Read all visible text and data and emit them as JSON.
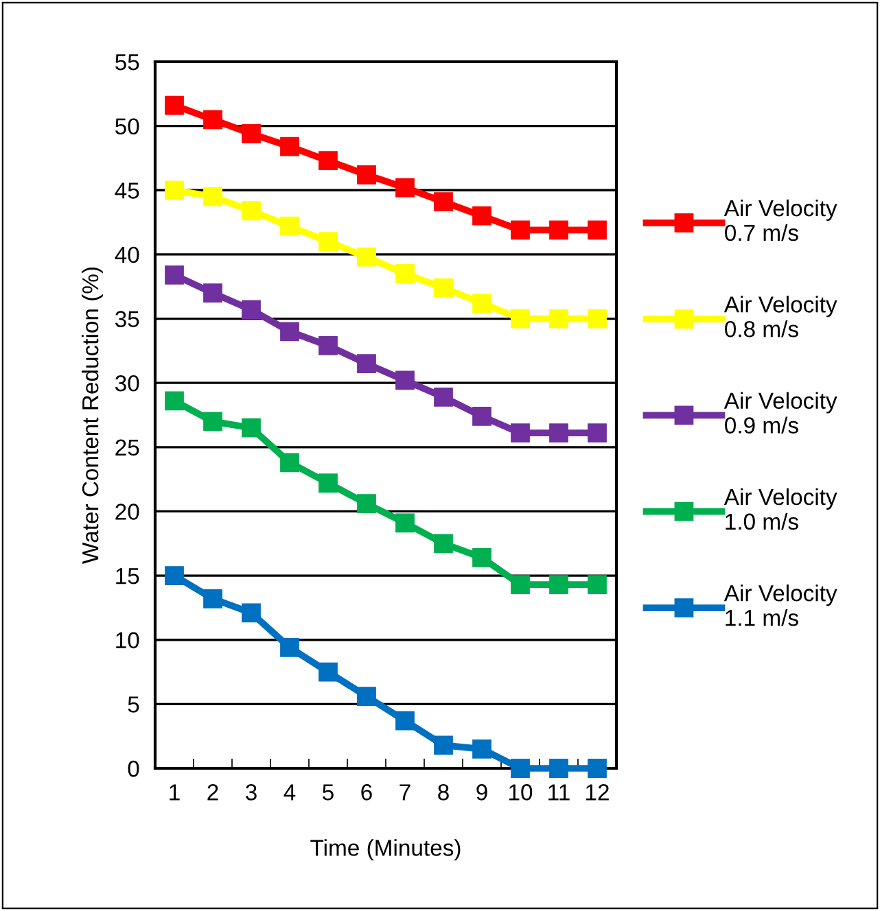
{
  "chart_data": {
    "type": "line",
    "xlabel": "Time (Minutes)",
    "ylabel": "Water Content Reduction (%)",
    "categories": [
      "1",
      "2",
      "3",
      "4",
      "5",
      "6",
      "7",
      "8",
      "9",
      "10",
      "11",
      "12"
    ],
    "series": [
      {
        "name": "Air Velocity\n0.7 m/s",
        "color": "#ff0000",
        "values": [
          51.6,
          50.5,
          49.4,
          48.4,
          47.3,
          46.2,
          45.2,
          44.1,
          43.0,
          41.9,
          41.9,
          41.9
        ]
      },
      {
        "name": "Air Velocity\n0.8 m/s",
        "color": "#ffff00",
        "values": [
          45.0,
          44.5,
          43.4,
          42.2,
          41.0,
          39.8,
          38.5,
          37.4,
          36.2,
          35.0,
          35.0,
          35.0
        ]
      },
      {
        "name": "Air Velocity\n0.9 m/s",
        "color": "#7030a0",
        "values": [
          38.4,
          37.0,
          35.7,
          34.0,
          32.9,
          31.5,
          30.2,
          28.9,
          27.4,
          26.1,
          26.1,
          26.1
        ]
      },
      {
        "name": "Air Velocity\n1.0 m/s",
        "color": "#00b050",
        "values": [
          28.6,
          27.0,
          26.5,
          23.8,
          22.2,
          20.6,
          19.1,
          17.5,
          16.4,
          14.3,
          14.3,
          14.3
        ]
      },
      {
        "name": "Air Velocity\n1.1 m/s",
        "color": "#0070c0",
        "values": [
          15.0,
          13.2,
          12.1,
          9.4,
          7.5,
          5.6,
          3.7,
          1.8,
          1.5,
          0,
          0,
          0
        ]
      }
    ],
    "ylim": [
      0,
      55
    ],
    "yticks": [
      0,
      5,
      10,
      15,
      20,
      25,
      30,
      35,
      40,
      45,
      50,
      55
    ],
    "grid": "y",
    "legend": "right",
    "marker": "square",
    "line_style": "solid"
  }
}
